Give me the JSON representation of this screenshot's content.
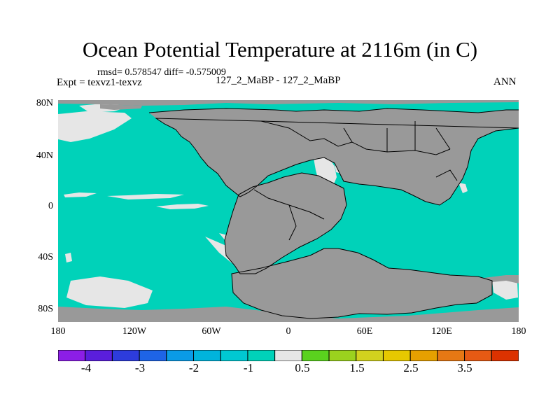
{
  "title": "Ocean Potential Temperature at 2116m (in C)",
  "stats_line": "rmsd= 0.578547  diff= -0.575009",
  "expt_line": "Expt = texvz1-texvz",
  "case_line": "127_2_MaBP - 127_2_MaBP",
  "season": "ANN",
  "y_ticks": [
    "80N",
    "40N",
    "0",
    "40S",
    "80S"
  ],
  "x_ticks": [
    "180",
    "120W",
    "60W",
    "0",
    "60E",
    "120E",
    "180"
  ],
  "colorbar": {
    "colors": [
      "#8c1ee6",
      "#5a1edc",
      "#2d3cdc",
      "#1e64e6",
      "#0a9be6",
      "#00b4dc",
      "#00c8d2",
      "#00d2b9",
      "#e6e6e6",
      "#5ad21e",
      "#9bd21e",
      "#d2d21e",
      "#e6c800",
      "#e6a000",
      "#e67814",
      "#e65a14",
      "#dc3200"
    ],
    "labels": [
      "-4",
      "-3",
      "-2",
      "-1",
      "0.5",
      "1.5",
      "2.5",
      "3.5"
    ]
  },
  "colors": {
    "ocean": "#00d2b9",
    "land": "#999999",
    "near_zero": "#e6e6e6"
  }
}
